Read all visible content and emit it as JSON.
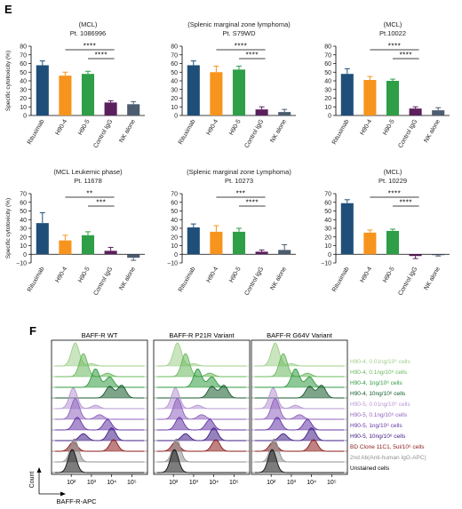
{
  "panel_e_label": "E",
  "panel_f_label": "F",
  "colors": {
    "rituximab": "#1f4e79",
    "h90_4": "#f7941d",
    "h90_5": "#2e9e47",
    "control": "#5b1f5c",
    "nk": "#4d5d70"
  },
  "chart_data": [
    {
      "type": "bar",
      "title": "(MCL)",
      "subtitle": "Pt. 1086996",
      "ylabel": "Specific cytotoxicity (%)",
      "ylim": [
        0,
        80
      ],
      "yticks": [
        0,
        10,
        20,
        30,
        40,
        50,
        60,
        70,
        80
      ],
      "categories": [
        "Rituximab",
        "H90-4",
        "H90-5",
        "Control IgG",
        "NK alone"
      ],
      "values": [
        58,
        46,
        48,
        15,
        13
      ],
      "errors": [
        5,
        4,
        3,
        2,
        3
      ],
      "significance": [
        {
          "from": 1,
          "to": 3,
          "label": "****"
        },
        {
          "from": 2,
          "to": 3,
          "label": "****"
        }
      ]
    },
    {
      "type": "bar",
      "title": "(Splenic marginal zone lymphoma)",
      "subtitle": "Pt. S79WD",
      "ylabel": "",
      "ylim": [
        0,
        80
      ],
      "yticks": [
        0,
        10,
        20,
        30,
        40,
        50,
        60,
        70,
        80
      ],
      "categories": [
        "Rituximab",
        "H90-4",
        "H90-5",
        "Control IgG",
        "NK alone"
      ],
      "values": [
        58,
        50,
        53,
        7,
        4
      ],
      "errors": [
        5,
        7,
        4,
        3,
        3
      ],
      "significance": [
        {
          "from": 1,
          "to": 3,
          "label": "****"
        },
        {
          "from": 2,
          "to": 3,
          "label": "****"
        }
      ]
    },
    {
      "type": "bar",
      "title": "(MCL)",
      "subtitle": "Pt.10022",
      "ylabel": "",
      "ylim": [
        0,
        80
      ],
      "yticks": [
        0,
        10,
        20,
        30,
        40,
        50,
        60,
        70,
        80
      ],
      "categories": [
        "Rituximab",
        "H90-4",
        "H90-5",
        "Control IgG",
        "NK alone"
      ],
      "values": [
        48,
        41,
        40,
        8,
        6
      ],
      "errors": [
        6,
        4,
        2,
        2,
        3
      ],
      "significance": [
        {
          "from": 1,
          "to": 3,
          "label": "****"
        },
        {
          "from": 2,
          "to": 3,
          "label": "****"
        }
      ]
    },
    {
      "type": "bar",
      "title": "(MCL Leukemic phase)",
      "subtitle": "Pt. 11678",
      "ylabel": "Specific cytotoxicity (%)",
      "ylim": [
        -10,
        70
      ],
      "yticks": [
        -10,
        0,
        10,
        20,
        30,
        40,
        50,
        60,
        70
      ],
      "categories": [
        "Rituximab",
        "H90-4",
        "H90-5",
        "Control IgG",
        "NK alone"
      ],
      "values": [
        36,
        16,
        22,
        4,
        -4
      ],
      "errors": [
        12,
        6,
        4,
        4,
        3
      ],
      "significance": [
        {
          "from": 1,
          "to": 3,
          "label": "**"
        },
        {
          "from": 2,
          "to": 3,
          "label": "***"
        }
      ]
    },
    {
      "type": "bar",
      "title": "(Splenic marginal zone Lymphoma)",
      "subtitle": "Pt. 10273",
      "ylabel": "",
      "ylim": [
        -10,
        70
      ],
      "yticks": [
        -10,
        0,
        10,
        20,
        30,
        40,
        50,
        60,
        70
      ],
      "categories": [
        "Rituximab",
        "H90-4",
        "H90-5",
        "Control IgG",
        "NK alone"
      ],
      "values": [
        31,
        26,
        26,
        3,
        5
      ],
      "errors": [
        4,
        7,
        4,
        2,
        6
      ],
      "significance": [
        {
          "from": 1,
          "to": 3,
          "label": "***"
        },
        {
          "from": 2,
          "to": 3,
          "label": "****"
        }
      ]
    },
    {
      "type": "bar",
      "title": "(MCL)",
      "subtitle": "Pt. 10229",
      "ylabel": "",
      "ylim": [
        -10,
        70
      ],
      "yticks": [
        -10,
        0,
        10,
        20,
        30,
        40,
        50,
        60,
        70
      ],
      "categories": [
        "Rituximab",
        "H90-4",
        "H90-5",
        "Control IgG",
        "NK alone"
      ],
      "values": [
        59,
        25,
        27,
        -2,
        -1
      ],
      "errors": [
        4,
        3,
        2,
        3,
        1
      ],
      "significance": [
        {
          "from": 1,
          "to": 3,
          "label": "****"
        },
        {
          "from": 2,
          "to": 3,
          "label": "****"
        }
      ]
    }
  ],
  "histogram": {
    "columns": [
      "BAFF-R WT",
      "BAFF-R P21R Variant",
      "BAFF-R G64V Variant"
    ],
    "xlabel": "BAFF-R-APC",
    "ylabel": "Count",
    "x_ticks": [
      "10²",
      "10³",
      "10⁴",
      "10⁵"
    ],
    "x_tick_log": [
      2,
      3,
      4,
      5
    ],
    "rows": [
      {
        "label": "H90-4, 0.01ng/10⁶ cells",
        "color": "#9fcf8a",
        "peaks": [
          [
            2.2,
            1.0
          ],
          [
            3.0,
            0.1
          ]
        ]
      },
      {
        "label": "H90-4, 0.1ng/10⁶ cells",
        "color": "#69b85c",
        "peaks": [
          [
            2.6,
            1.0
          ],
          [
            3.8,
            0.15
          ]
        ]
      },
      {
        "label": "H90-4, 1ng/10⁶ cells",
        "color": "#2f9a3f",
        "peaks": [
          [
            3.2,
            0.8
          ],
          [
            3.9,
            0.45
          ]
        ]
      },
      {
        "label": "H90-4, 10ng/10⁶ cells",
        "color": "#14592a",
        "peaks": [
          [
            3.9,
            0.5
          ],
          [
            4.5,
            0.55
          ]
        ]
      },
      {
        "label": "H90-5, 0.01ng/10⁶ cells",
        "color": "#b696d2",
        "peaks": [
          [
            2.1,
            0.9
          ],
          [
            3.2,
            0.15
          ]
        ]
      },
      {
        "label": "H90-5, 0.1ng/10⁶ cells",
        "color": "#8e63bd",
        "peaks": [
          [
            2.2,
            0.9
          ],
          [
            3.4,
            0.2
          ]
        ]
      },
      {
        "label": "H90-5, 1ng/10⁶ cells",
        "color": "#6437a5",
        "peaks": [
          [
            2.3,
            0.55
          ],
          [
            3.8,
            0.45
          ]
        ]
      },
      {
        "label": "H90-5, 10ng/10⁶ cells",
        "color": "#3f1c85",
        "peaks": [
          [
            2.6,
            0.3
          ],
          [
            4.0,
            0.55
          ]
        ]
      },
      {
        "label": "BD Clone 11C1, 5ul/10⁶ cells",
        "color": "#8b1a1a",
        "peaks": [
          [
            2.1,
            0.4
          ],
          [
            4.1,
            0.5
          ]
        ]
      },
      {
        "label": "2nd Ab(Anti-human IgG-APC)",
        "color": "#8f8f8f",
        "peaks": [
          [
            2.15,
            1.0
          ]
        ]
      },
      {
        "label": "Unstained cells",
        "color": "#111111",
        "peaks": [
          [
            2.05,
            1.0
          ]
        ]
      }
    ]
  }
}
